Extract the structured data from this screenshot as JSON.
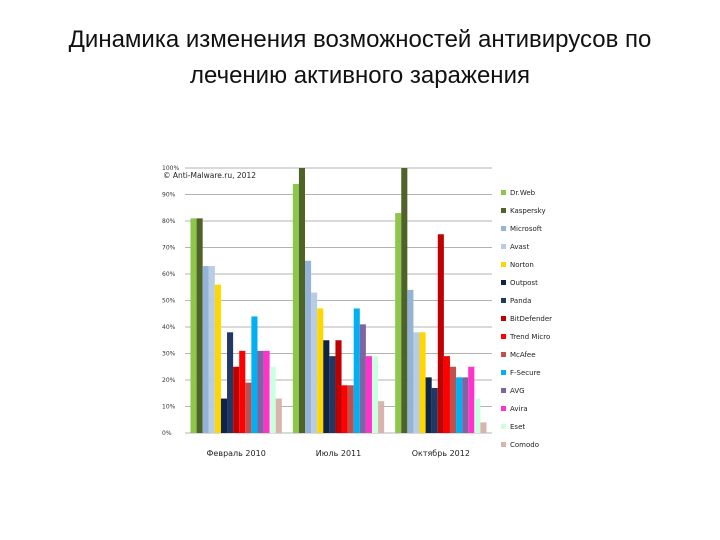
{
  "slide": {
    "title_line1": "Динамика изменения возможностей антивирусов по",
    "title_line2": "лечению активного заражения"
  },
  "chart_data": {
    "type": "bar",
    "annotation": "© Anti-Malware.ru, 2012",
    "categories": [
      "Февраль 2010",
      "Июль 2011",
      "Октябрь 2012"
    ],
    "ylim": [
      0,
      100
    ],
    "yticks": [
      "0%",
      "10%",
      "20%",
      "30%",
      "40%",
      "50%",
      "60%",
      "70%",
      "80%",
      "90%",
      "100%"
    ],
    "grid": true,
    "legend_position": "right",
    "series": [
      {
        "name": "Dr.Web",
        "color": "#8DC64A",
        "values": [
          81,
          94,
          83
        ]
      },
      {
        "name": "Kaspersky",
        "color": "#4F6228",
        "values": [
          81,
          100,
          100
        ]
      },
      {
        "name": "Microsoft",
        "color": "#95B3D7",
        "values": [
          63,
          65,
          54
        ]
      },
      {
        "name": "Avast",
        "color": "#B8CCE4",
        "values": [
          63,
          53,
          38
        ]
      },
      {
        "name": "Norton",
        "color": "#FFD700",
        "values": [
          56,
          47,
          38
        ]
      },
      {
        "name": "Outpost",
        "color": "#0F2447",
        "values": [
          13,
          35,
          21
        ]
      },
      {
        "name": "Panda",
        "color": "#1F3864",
        "values": [
          38,
          29,
          17
        ]
      },
      {
        "name": "BitDefender",
        "color": "#C00000",
        "values": [
          25,
          35,
          75
        ]
      },
      {
        "name": "Trend Micro",
        "color": "#FF0000",
        "values": [
          31,
          18,
          29
        ]
      },
      {
        "name": "McAfee",
        "color": "#C0504D",
        "values": [
          19,
          18,
          25
        ]
      },
      {
        "name": "F-Secure",
        "color": "#00B0F0",
        "values": [
          44,
          47,
          21
        ]
      },
      {
        "name": "AVG",
        "color": "#8064A2",
        "values": [
          31,
          41,
          21
        ]
      },
      {
        "name": "Avira",
        "color": "#FF33CC",
        "values": [
          31,
          29,
          25
        ]
      },
      {
        "name": "Eset",
        "color": "#CCFFE0",
        "values": [
          25,
          29,
          13
        ]
      },
      {
        "name": "Comodo",
        "color": "#D9B3AE",
        "values": [
          13,
          12,
          4
        ]
      }
    ]
  }
}
